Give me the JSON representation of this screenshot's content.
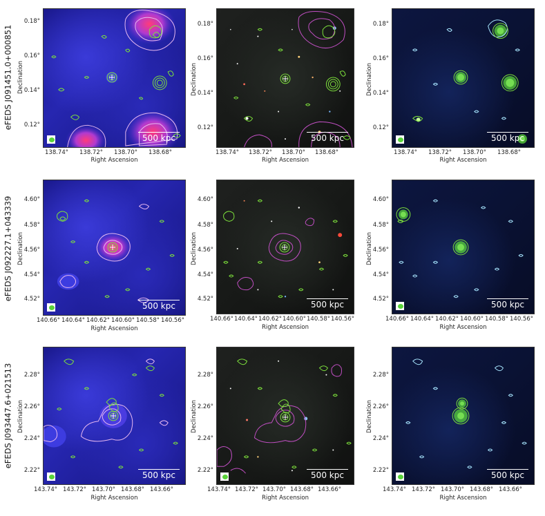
{
  "rows": [
    {
      "source_label": "eFEDS J091451.0+000851",
      "xticks": [
        "138.74°",
        "138.72°",
        "138.70°",
        "138.68°"
      ],
      "yticks": [
        "0.18°",
        "0.16°",
        "0.14°",
        "0.12°"
      ],
      "xlabel": "Right Ascension",
      "ylabel": "Declination",
      "scale_label": "500 kpc"
    },
    {
      "source_label": "eFEDS J092227.1+043339",
      "xticks": [
        "140.66°",
        "140.64°",
        "140.62°",
        "140.60°",
        "140.58°",
        "140.56°"
      ],
      "yticks": [
        "4.60°",
        "4.58°",
        "4.56°",
        "4.54°",
        "4.52°"
      ],
      "xlabel": "Right Ascension",
      "ylabel": "Declination",
      "scale_label": "500 kpc"
    },
    {
      "source_label": "eFEDS J093447.6+021513",
      "xticks": [
        "143.74°",
        "143.72°",
        "143.70°",
        "143.68°",
        "143.66°"
      ],
      "yticks": [
        "2.28°",
        "2.26°",
        "2.24°",
        "2.22°"
      ],
      "xlabel": "Right Ascension",
      "ylabel": "Declination",
      "scale_label": "500 kpc"
    }
  ],
  "columns": [
    "xray",
    "optical",
    "radio"
  ],
  "colors": {
    "radio_contour": "#7ee23c",
    "xray_contour_xraypanel": "#e7b8f0",
    "xray_contour_optical": "#c24fc4",
    "radio_contour_radiopanel": "#a8e6ff",
    "hot_source": "#ff3b7a"
  }
}
